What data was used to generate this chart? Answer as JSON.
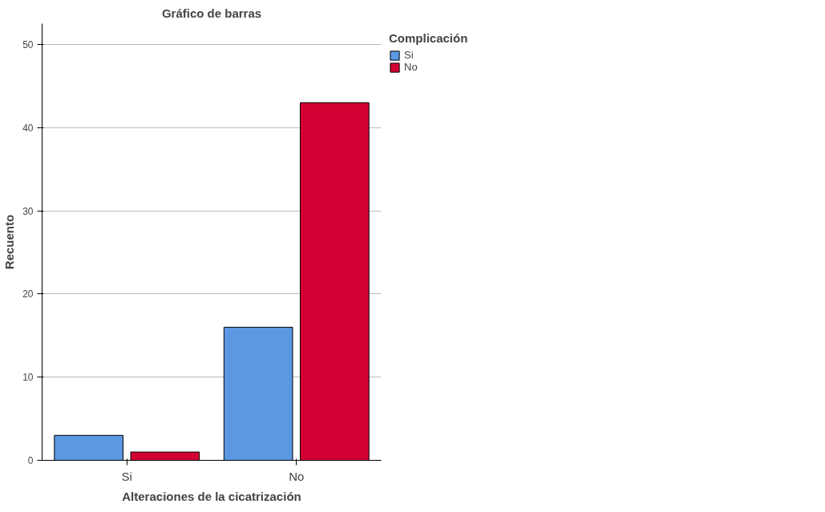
{
  "chart_data": {
    "type": "bar",
    "title": "Gráfico de barras",
    "xlabel": "Alteraciones de la cicatrización",
    "ylabel": "Recuento",
    "legend_title": "Complicación",
    "categories": [
      "Si",
      "No"
    ],
    "series": [
      {
        "name": "Si",
        "color": "#5b97e3",
        "values": [
          3,
          16
        ]
      },
      {
        "name": "No",
        "color": "#d20032",
        "values": [
          1,
          43
        ]
      }
    ],
    "ylim": [
      0,
      52.5
    ],
    "yticks": [
      0,
      10,
      20,
      30,
      40,
      50
    ],
    "grid": "y",
    "legend": "top right"
  }
}
